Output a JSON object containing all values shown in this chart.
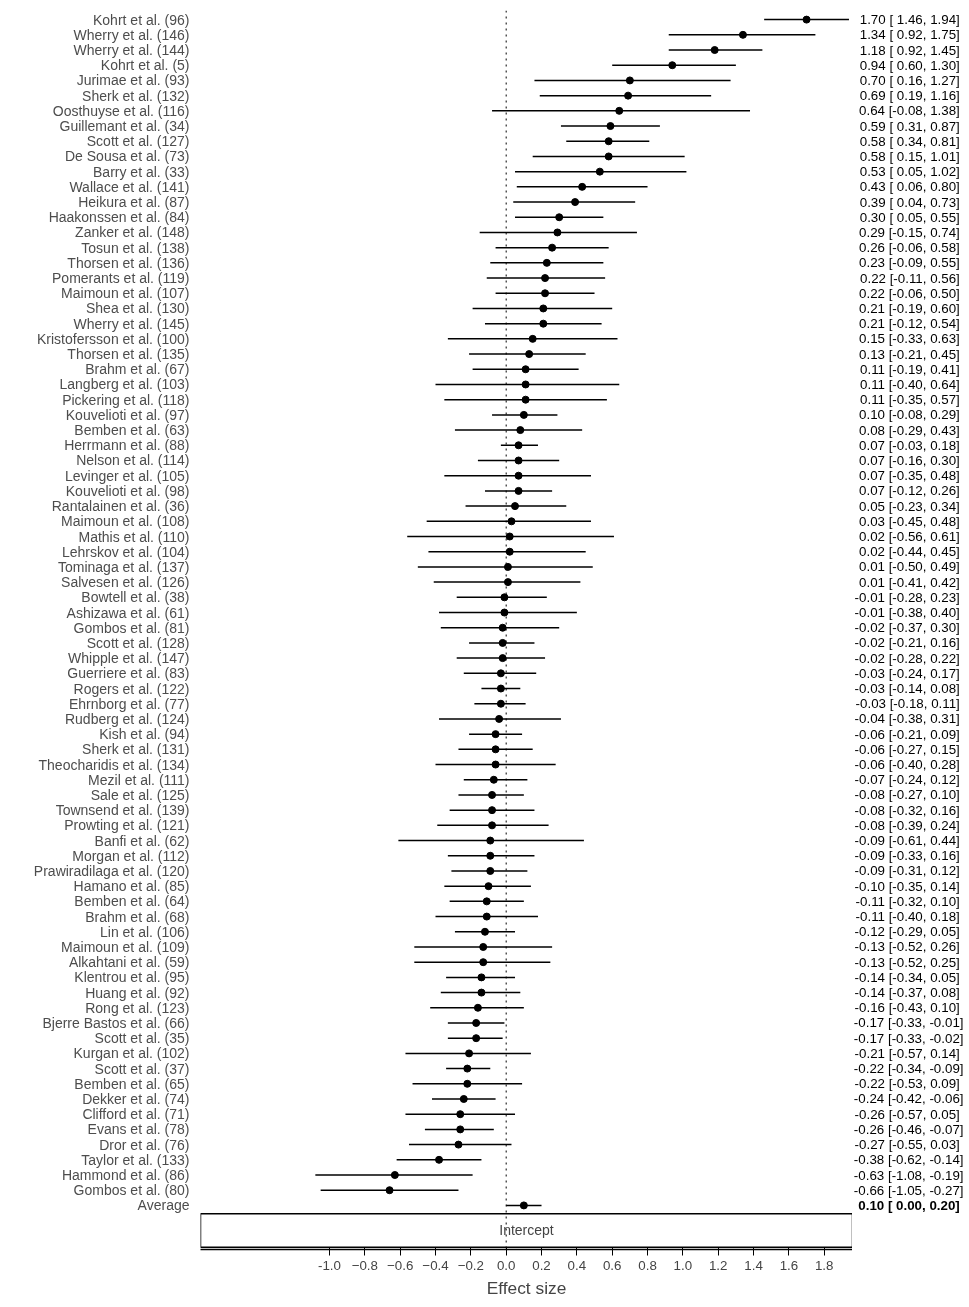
{
  "chart_data": {
    "type": "scatter",
    "orientation": "horizontal",
    "xlabel": "Effect size",
    "color": "#000000",
    "marker": "circle",
    "grid": false,
    "annotations": [
      "Intercept"
    ],
    "ref_lines": [
      {
        "axis": "x",
        "value": 0,
        "line_style": "dotted",
        "color": "#000000"
      }
    ],
    "xlim": [
      -1.73,
      1.96
    ],
    "xticks": [
      {
        "value": -1.0,
        "label": "-1.0"
      },
      -0.8,
      -0.6,
      -0.4,
      -0.2,
      {
        "value": 0.0,
        "label": "0.0"
      },
      0.2,
      0.4,
      0.6,
      0.8,
      {
        "value": 1.0,
        "label": "1.0"
      },
      1.2,
      1.4,
      1.6,
      1.8
    ],
    "categories": [
      "Kohrt et al. (96)",
      "Wherry et al. (146)",
      "Wherry et al. (144)",
      "Kohrt et al. (5)",
      "Jurimae et al. (93)",
      "Sherk et al. (132)",
      "Oosthuyse et al. (116)",
      "Guillemant et al. (34)",
      "Scott et al. (127)",
      "De Sousa et al. (73)",
      "Barry et al. (33)",
      "Wallace et al. (141)",
      "Heikura et al. (87)",
      "Haakonssen et al. (84)",
      "Zanker et al. (148)",
      "Tosun et al. (138)",
      "Thorsen et al. (136)",
      "Pomerants et al. (119)",
      "Maimoun et al. (107)",
      "Shea et al. (130)",
      "Wherry et al. (145)",
      "Kristofersson et al. (100)",
      "Thorsen et al. (135)",
      "Brahm et al. (67)",
      "Langberg et al. (103)",
      "Pickering et al. (118)",
      "Kouvelioti et al. (97)",
      "Bemben et al. (63)",
      "Herrmann et al. (88)",
      "Nelson et al. (114)",
      "Levinger et al. (105)",
      "Kouvelioti et al. (98)",
      "Rantalainen et al. (36)",
      "Maimoun et al. (108)",
      "Mathis et al. (110)",
      "Lehrskov et al. (104)",
      "Tominaga et al. (137)",
      "Salvesen et al. (126)",
      "Bowtell et al. (38)",
      "Ashizawa et al. (61)",
      "Gombos et al. (81)",
      "Scott et al. (128)",
      "Whipple et al. (147)",
      "Guerriere et al. (83)",
      "Rogers et al. (122)",
      "Ehrnborg et al. (77)",
      "Rudberg et al. (124)",
      "Kish et al. (94)",
      "Sherk et al. (131)",
      "Theocharidis et al. (134)",
      "Mezil et al. (111)",
      "Sale et al. (125)",
      "Townsend et al. (139)",
      "Prowting et al. (121)",
      "Banfi et al. (62)",
      "Morgan et al. (112)",
      "Prawiradilaga et al. (120)",
      "Hamano et al. (85)",
      "Bemben et al. (64)",
      "Brahm et al. (68)",
      "Lin et al. (106)",
      "Maimoun et al. (109)",
      "Alkahtani et al. (59)",
      "Klentrou et al. (95)",
      "Huang et al. (92)",
      "Rong et al. (123)",
      "Bjerre Bastos et al. (66)",
      "Scott et al. (35)",
      "Kurgan et al. (102)",
      "Scott et al. (37)",
      "Bemben et al. (65)",
      "Dekker et al. (74)",
      "Clifford et al. (71)",
      "Evans et al. (78)",
      "Dror et al. (76)",
      "Taylor et al. (133)",
      "Hammond et al. (86)",
      "Gombos et al. (80)",
      "Average"
    ],
    "values": [
      1.7,
      1.34,
      1.18,
      0.94,
      0.7,
      0.69,
      0.64,
      0.59,
      0.58,
      0.58,
      0.53,
      0.43,
      0.39,
      0.3,
      0.29,
      0.26,
      0.23,
      0.22,
      0.22,
      0.21,
      0.21,
      0.15,
      0.13,
      0.11,
      0.11,
      0.11,
      0.1,
      0.08,
      0.07,
      0.07,
      0.07,
      0.07,
      0.05,
      0.03,
      0.02,
      0.02,
      0.01,
      0.01,
      -0.01,
      -0.01,
      -0.02,
      -0.02,
      -0.02,
      -0.03,
      -0.03,
      -0.03,
      -0.04,
      -0.06,
      -0.06,
      -0.06,
      -0.07,
      -0.08,
      -0.08,
      -0.08,
      -0.09,
      -0.09,
      -0.09,
      -0.1,
      -0.11,
      -0.11,
      -0.12,
      -0.13,
      -0.13,
      -0.14,
      -0.14,
      -0.16,
      -0.17,
      -0.17,
      -0.21,
      -0.22,
      -0.22,
      -0.24,
      -0.26,
      -0.26,
      -0.27,
      -0.38,
      -0.63,
      -0.66,
      0.1
    ],
    "errors": [
      [
        1.46,
        1.94
      ],
      [
        0.92,
        1.75
      ],
      [
        0.92,
        1.45
      ],
      [
        0.6,
        1.3
      ],
      [
        0.16,
        1.27
      ],
      [
        0.19,
        1.16
      ],
      [
        -0.08,
        1.38
      ],
      [
        0.31,
        0.87
      ],
      [
        0.34,
        0.81
      ],
      [
        0.15,
        1.01
      ],
      [
        0.05,
        1.02
      ],
      [
        0.06,
        0.8
      ],
      [
        0.04,
        0.73
      ],
      [
        0.05,
        0.55
      ],
      [
        -0.15,
        0.74
      ],
      [
        -0.06,
        0.58
      ],
      [
        -0.09,
        0.55
      ],
      [
        -0.11,
        0.56
      ],
      [
        -0.06,
        0.5
      ],
      [
        -0.19,
        0.6
      ],
      [
        -0.12,
        0.54
      ],
      [
        -0.33,
        0.63
      ],
      [
        -0.21,
        0.45
      ],
      [
        -0.19,
        0.41
      ],
      [
        -0.4,
        0.64
      ],
      [
        -0.35,
        0.57
      ],
      [
        -0.08,
        0.29
      ],
      [
        -0.29,
        0.43
      ],
      [
        -0.03,
        0.18
      ],
      [
        -0.16,
        0.3
      ],
      [
        -0.35,
        0.48
      ],
      [
        -0.12,
        0.26
      ],
      [
        -0.23,
        0.34
      ],
      [
        -0.45,
        0.48
      ],
      [
        -0.56,
        0.61
      ],
      [
        -0.44,
        0.45
      ],
      [
        -0.5,
        0.49
      ],
      [
        -0.41,
        0.42
      ],
      [
        -0.28,
        0.23
      ],
      [
        -0.38,
        0.4
      ],
      [
        -0.37,
        0.3
      ],
      [
        -0.21,
        0.16
      ],
      [
        -0.28,
        0.22
      ],
      [
        -0.24,
        0.17
      ],
      [
        -0.14,
        0.08
      ],
      [
        -0.18,
        0.11
      ],
      [
        -0.38,
        0.31
      ],
      [
        -0.21,
        0.09
      ],
      [
        -0.27,
        0.15
      ],
      [
        -0.4,
        0.28
      ],
      [
        -0.24,
        0.12
      ],
      [
        -0.27,
        0.1
      ],
      [
        -0.32,
        0.16
      ],
      [
        -0.39,
        0.24
      ],
      [
        -0.61,
        0.44
      ],
      [
        -0.33,
        0.16
      ],
      [
        -0.31,
        0.12
      ],
      [
        -0.35,
        0.14
      ],
      [
        -0.32,
        0.1
      ],
      [
        -0.4,
        0.18
      ],
      [
        -0.29,
        0.05
      ],
      [
        -0.52,
        0.26
      ],
      [
        -0.52,
        0.25
      ],
      [
        -0.34,
        0.05
      ],
      [
        -0.37,
        0.08
      ],
      [
        -0.43,
        0.1
      ],
      [
        -0.33,
        -0.01
      ],
      [
        -0.33,
        -0.02
      ],
      [
        -0.57,
        0.14
      ],
      [
        -0.34,
        -0.09
      ],
      [
        -0.53,
        0.09
      ],
      [
        -0.42,
        -0.06
      ],
      [
        -0.57,
        0.05
      ],
      [
        -0.46,
        -0.07
      ],
      [
        -0.55,
        0.03
      ],
      [
        -0.62,
        -0.14
      ],
      [
        -1.08,
        -0.19
      ],
      [
        -1.05,
        -0.27
      ],
      [
        0.0,
        0.2
      ]
    ],
    "value_labels": [
      "1.70 [ 1.46,  1.94]",
      "1.34 [ 0.92,  1.75]",
      "1.18 [ 0.92,  1.45]",
      "0.94 [ 0.60,  1.30]",
      "0.70 [ 0.16,  1.27]",
      "0.69 [ 0.19,  1.16]",
      "0.64 [-0.08,  1.38]",
      "0.59 [ 0.31,  0.87]",
      "0.58 [ 0.34,  0.81]",
      "0.58 [ 0.15,  1.01]",
      "0.53 [ 0.05,  1.02]",
      "0.43 [ 0.06,  0.80]",
      "0.39 [ 0.04,  0.73]",
      "0.30 [ 0.05,  0.55]",
      "0.29 [-0.15,  0.74]",
      "0.26 [-0.06,  0.58]",
      "0.23 [-0.09,  0.55]",
      "0.22 [-0.11,  0.56]",
      "0.22 [-0.06,  0.50]",
      "0.21 [-0.19,  0.60]",
      "0.21 [-0.12,  0.54]",
      "0.15 [-0.33,  0.63]",
      "0.13 [-0.21,  0.45]",
      "0.11 [-0.19,  0.41]",
      "0.11 [-0.40,  0.64]",
      "0.11 [-0.35,  0.57]",
      "0.10 [-0.08,  0.29]",
      "0.08 [-0.29,  0.43]",
      "0.07 [-0.03,  0.18]",
      "0.07 [-0.16,  0.30]",
      "0.07 [-0.35,  0.48]",
      "0.07 [-0.12,  0.26]",
      "0.05 [-0.23,  0.34]",
      "0.03 [-0.45,  0.48]",
      "0.02 [-0.56,  0.61]",
      "0.02 [-0.44,  0.45]",
      "0.01 [-0.50,  0.49]",
      "0.01 [-0.41,  0.42]",
      "-0.01 [-0.28,  0.23]",
      "-0.01 [-0.38,  0.40]",
      "-0.02 [-0.37,  0.30]",
      "-0.02 [-0.21,  0.16]",
      "-0.02 [-0.28,  0.22]",
      "-0.03 [-0.24,  0.17]",
      "-0.03 [-0.14,  0.08]",
      "-0.03 [-0.18,  0.11]",
      "-0.04 [-0.38,  0.31]",
      "-0.06 [-0.21,  0.09]",
      "-0.06 [-0.27,  0.15]",
      "-0.06 [-0.40,  0.28]",
      "-0.07 [-0.24,  0.12]",
      "-0.08 [-0.27,  0.10]",
      "-0.08 [-0.32,  0.16]",
      "-0.08 [-0.39,  0.24]",
      "-0.09 [-0.61,  0.44]",
      "-0.09 [-0.33,  0.16]",
      "-0.09 [-0.31,  0.12]",
      "-0.10 [-0.35,  0.14]",
      "-0.11 [-0.32,  0.10]",
      "-0.11 [-0.40,  0.18]",
      "-0.12 [-0.29,  0.05]",
      "-0.13 [-0.52,  0.26]",
      "-0.13 [-0.52,  0.25]",
      "-0.14 [-0.34,  0.05]",
      "-0.14 [-0.37,  0.08]",
      "-0.16 [-0.43,  0.10]",
      "-0.17 [-0.33, -0.01]",
      "-0.17 [-0.33, -0.02]",
      "-0.21 [-0.57,  0.14]",
      "-0.22 [-0.34, -0.09]",
      "-0.22 [-0.53,  0.09]",
      "-0.24 [-0.42, -0.06]",
      "-0.26 [-0.57,  0.05]",
      "-0.26 [-0.46, -0.07]",
      "-0.27 [-0.55,  0.03]",
      "-0.38 [-0.62, -0.14]",
      "-0.63 [-1.08, -0.19]",
      "-0.66 [-1.05, -0.27]",
      "0.10 [ 0.00,  0.20]"
    ]
  }
}
